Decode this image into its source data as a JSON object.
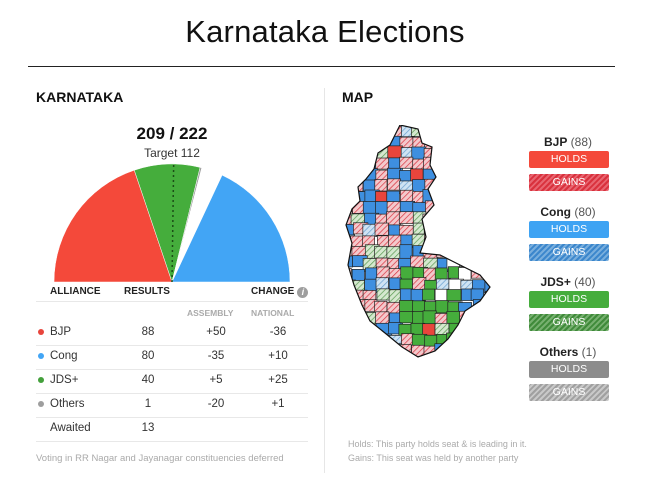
{
  "page": {
    "title": "Karnataka Elections"
  },
  "left": {
    "heading": "KARNATAKA",
    "tally": "209 / 222",
    "target": "Target 112",
    "table": {
      "headers": {
        "alliance": "ALLIANCE",
        "results": "RESULTS",
        "change": "CHANGE",
        "info_icon": "i"
      },
      "subheaders": {
        "assembly": "ASSEMBLY",
        "national": "NATIONAL"
      },
      "rows": [
        {
          "name": "BJP",
          "results": "88",
          "assembly": "+50",
          "national": "-36",
          "color": "#e8453c"
        },
        {
          "name": "Cong",
          "results": "80",
          "assembly": "-35",
          "national": "+10",
          "color": "#42a5f5"
        },
        {
          "name": "JDS+",
          "results": "40",
          "assembly": "+5",
          "national": "+25",
          "color": "#43a03b"
        },
        {
          "name": "Others",
          "results": "1",
          "assembly": "-20",
          "national": "+1",
          "color": "#9e9e9e"
        },
        {
          "name": "Awaited",
          "results": "13",
          "assembly": "",
          "national": "",
          "color": ""
        }
      ]
    },
    "footnote": "Voting in RR Nagar and Jayanagar constituencies deferred"
  },
  "right": {
    "heading": "MAP",
    "legend": [
      {
        "party": "BJP",
        "count": "(88)",
        "holds": "HOLDS",
        "gains": "GAINS",
        "color": "#f4493a",
        "gain_color": "#d9313d"
      },
      {
        "party": "Cong",
        "count": "(80)",
        "holds": "HOLDS",
        "gains": "GAINS",
        "color": "#3ea3f3",
        "gain_color": "#3b86cc"
      },
      {
        "party": "JDS+",
        "count": "(40)",
        "holds": "HOLDS",
        "gains": "GAINS",
        "color": "#45ad3c",
        "gain_color": "#3f8a3a"
      },
      {
        "party": "Others",
        "count": "(1)",
        "holds": "HOLDS",
        "gains": "GAINS",
        "color": "#8c8c8c",
        "gain_color": "#a8a8a8"
      }
    ],
    "footnote_holds": "Holds: This party holds seat & is leading in it.",
    "footnote_gains": "Gains: This seat was held by another party"
  },
  "chart_data": {
    "type": "pie",
    "subtype": "semicircle-parliament",
    "title": "KARNATAKA",
    "center_label": "209 / 222",
    "annotation": "Target 112",
    "total_seats": 222,
    "majority_target": 112,
    "categories": [
      "BJP",
      "JDS+",
      "Others",
      "Awaited",
      "Cong"
    ],
    "values": [
      88,
      40,
      1,
      13,
      80
    ],
    "colors": [
      "#f4493a",
      "#45ad3c",
      "#9e9e9e",
      "#ffffff",
      "#42a5f5"
    ],
    "target_line": "dotted vertical at 112 seats",
    "table": {
      "columns": [
        "Alliance",
        "Results",
        "Change Assembly",
        "Change National"
      ],
      "rows": [
        [
          "BJP",
          88,
          "+50",
          "-36"
        ],
        [
          "Cong",
          80,
          "-35",
          "+10"
        ],
        [
          "JDS+",
          40,
          "+5",
          "+25"
        ],
        [
          "Others",
          1,
          "-20",
          "+1"
        ],
        [
          "Awaited",
          13,
          "",
          ""
        ]
      ]
    }
  }
}
